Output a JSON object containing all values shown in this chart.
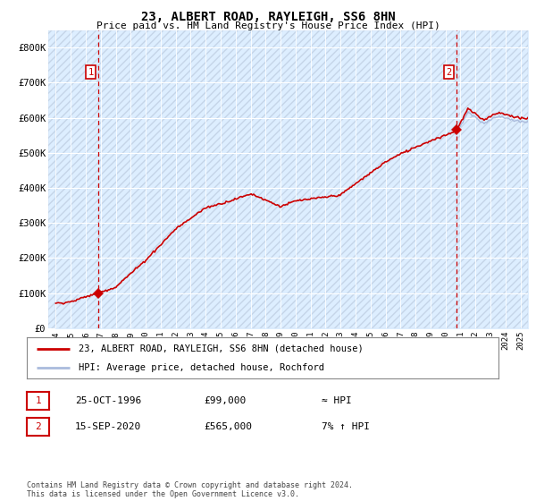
{
  "title": "23, ALBERT ROAD, RAYLEIGH, SS6 8HN",
  "subtitle": "Price paid vs. HM Land Registry's House Price Index (HPI)",
  "ylim": [
    0,
    850000
  ],
  "yticks": [
    0,
    100000,
    200000,
    300000,
    400000,
    500000,
    600000,
    700000,
    800000
  ],
  "ytick_labels": [
    "£0",
    "£100K",
    "£200K",
    "£300K",
    "£400K",
    "£500K",
    "£600K",
    "£700K",
    "£800K"
  ],
  "sale1_x": 1996.82,
  "sale1_y": 99000,
  "sale2_x": 2020.71,
  "sale2_y": 565000,
  "hpi_color": "#aabbdd",
  "price_color": "#cc0000",
  "legend_line1": "23, ALBERT ROAD, RAYLEIGH, SS6 8HN (detached house)",
  "legend_line2": "HPI: Average price, detached house, Rochford",
  "table_row1": [
    "1",
    "25-OCT-1996",
    "£99,000",
    "≈ HPI"
  ],
  "table_row2": [
    "2",
    "15-SEP-2020",
    "£565,000",
    "7% ↑ HPI"
  ],
  "footer": "Contains HM Land Registry data © Crown copyright and database right 2024.\nThis data is licensed under the Open Government Licence v3.0.",
  "plot_bg_color": "#ddeeff",
  "hatch_color": "#c5d5e8",
  "xlim_start": 1993.5,
  "xlim_end": 2025.5,
  "xtick_years": [
    1994,
    1995,
    1996,
    1997,
    1998,
    1999,
    2000,
    2001,
    2002,
    2003,
    2004,
    2005,
    2006,
    2007,
    2008,
    2009,
    2010,
    2011,
    2012,
    2013,
    2014,
    2015,
    2016,
    2017,
    2018,
    2019,
    2020,
    2021,
    2022,
    2023,
    2024,
    2025
  ]
}
